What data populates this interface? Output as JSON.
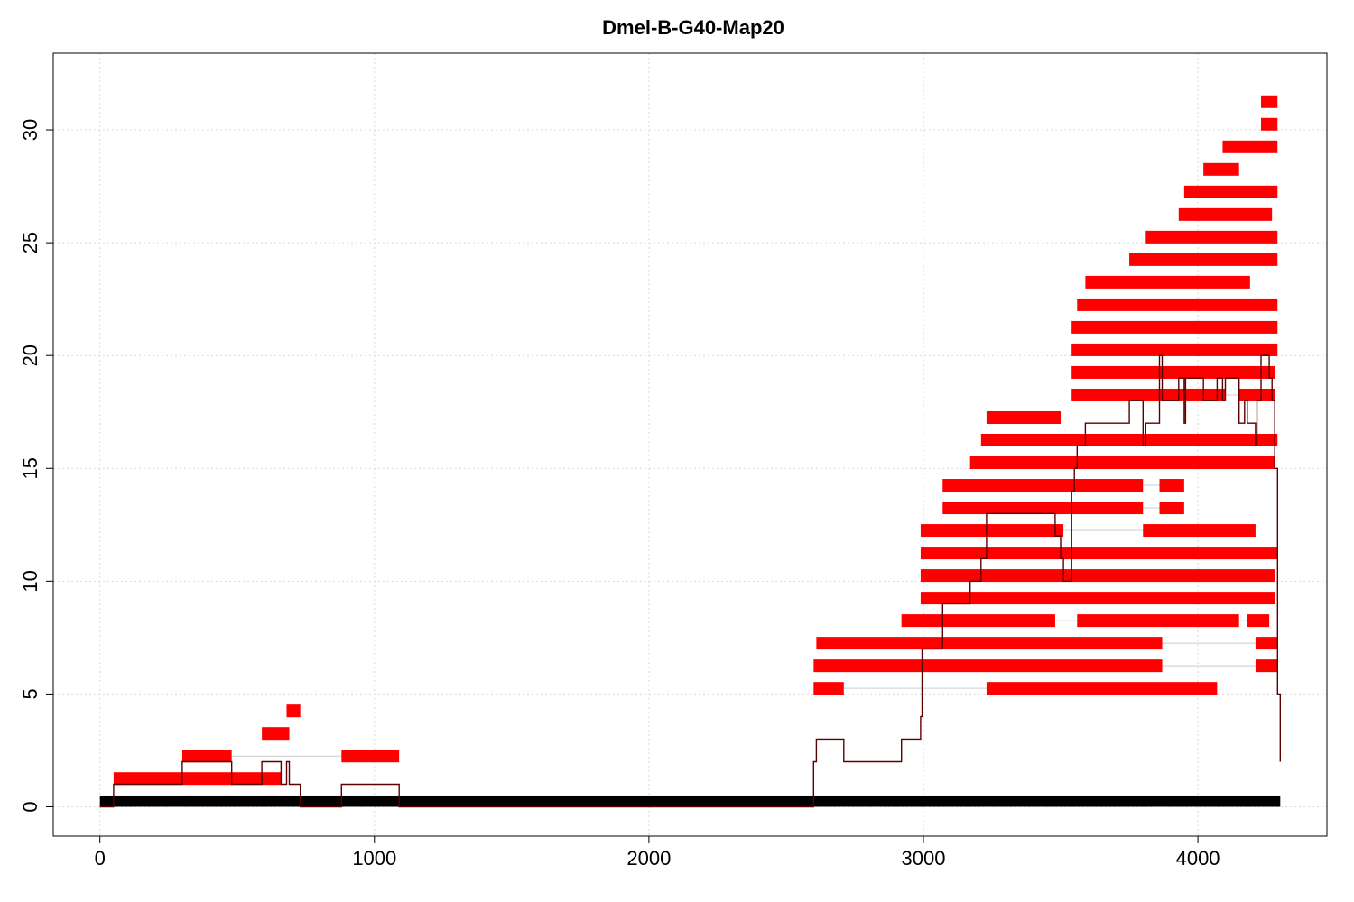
{
  "chart_data": {
    "type": "bar",
    "title": "Dmel-B-G40-Map20",
    "xlabel": "",
    "ylabel": "",
    "xlim": [
      -170,
      4470
    ],
    "ylim": [
      -1.3,
      33.4
    ],
    "x_ticks": [
      0,
      1000,
      2000,
      3000,
      4000
    ],
    "x_tick_labels": [
      "0",
      "1000",
      "2000",
      "3000",
      "4000"
    ],
    "y_ticks": [
      0,
      5,
      10,
      15,
      20,
      25,
      30
    ],
    "y_tick_labels": [
      "0",
      "5",
      "10",
      "15",
      "20",
      "25",
      "30"
    ],
    "grid": true,
    "colors": {
      "alignment": "#ff0000",
      "reference": "#000000",
      "coverage": "#5c0000",
      "connector": "#cccccc"
    },
    "reference_bar": {
      "start": 0,
      "end": 4300,
      "y": 0.25,
      "height": 0.5
    },
    "series": [
      {
        "y": 1.25,
        "segments": [
          [
            50,
            660
          ]
        ]
      },
      {
        "y": 2.25,
        "segments": [
          [
            300,
            480
          ],
          [
            880,
            1090
          ]
        ]
      },
      {
        "y": 3.25,
        "segments": [
          [
            590,
            690
          ]
        ]
      },
      {
        "y": 4.25,
        "segments": [
          [
            680,
            730
          ]
        ]
      },
      {
        "y": 5.25,
        "segments": [
          [
            2600,
            2710
          ],
          [
            3230,
            4070
          ]
        ]
      },
      {
        "y": 6.25,
        "segments": [
          [
            2600,
            3870
          ],
          [
            4210,
            4290
          ]
        ]
      },
      {
        "y": 7.25,
        "segments": [
          [
            2610,
            3870
          ],
          [
            4210,
            4290
          ]
        ]
      },
      {
        "y": 8.25,
        "segments": [
          [
            2920,
            3480
          ],
          [
            3560,
            4150
          ],
          [
            4180,
            4260
          ]
        ]
      },
      {
        "y": 9.25,
        "segments": [
          [
            2990,
            4280
          ]
        ]
      },
      {
        "y": 10.25,
        "segments": [
          [
            2990,
            4280
          ]
        ]
      },
      {
        "y": 11.25,
        "segments": [
          [
            2990,
            4290
          ]
        ]
      },
      {
        "y": 12.25,
        "segments": [
          [
            2990,
            3510
          ],
          [
            3800,
            4210
          ]
        ]
      },
      {
        "y": 13.25,
        "segments": [
          [
            3070,
            3800
          ],
          [
            3860,
            3950
          ]
        ]
      },
      {
        "y": 14.25,
        "segments": [
          [
            3070,
            3800
          ],
          [
            3860,
            3950
          ]
        ]
      },
      {
        "y": 15.25,
        "segments": [
          [
            3170,
            4280
          ]
        ]
      },
      {
        "y": 16.25,
        "segments": [
          [
            3210,
            4290
          ]
        ]
      },
      {
        "y": 17.25,
        "segments": [
          [
            3230,
            3500
          ]
        ]
      },
      {
        "y": 18.25,
        "segments": [
          [
            3540,
            4100
          ],
          [
            4150,
            4280
          ]
        ]
      },
      {
        "y": 19.25,
        "segments": [
          [
            3540,
            4280
          ]
        ]
      },
      {
        "y": 20.25,
        "segments": [
          [
            3540,
            4290
          ]
        ]
      },
      {
        "y": 21.25,
        "segments": [
          [
            3540,
            4290
          ]
        ]
      },
      {
        "y": 22.25,
        "segments": [
          [
            3560,
            4290
          ]
        ]
      },
      {
        "y": 23.25,
        "segments": [
          [
            3590,
            4190
          ]
        ]
      },
      {
        "y": 24.25,
        "segments": [
          [
            3750,
            4290
          ]
        ]
      },
      {
        "y": 25.25,
        "segments": [
          [
            3810,
            4290
          ]
        ]
      },
      {
        "y": 26.25,
        "segments": [
          [
            3930,
            4270
          ]
        ]
      },
      {
        "y": 27.25,
        "segments": [
          [
            3950,
            4290
          ]
        ]
      },
      {
        "y": 28.25,
        "segments": [
          [
            4020,
            4150
          ]
        ]
      },
      {
        "y": 29.25,
        "segments": [
          [
            4090,
            4290
          ]
        ]
      },
      {
        "y": 30.25,
        "segments": [
          [
            4230,
            4290
          ]
        ]
      },
      {
        "y": 31.25,
        "segments": [
          [
            4230,
            4290
          ]
        ]
      }
    ],
    "coverage": [
      [
        0,
        0
      ],
      [
        50,
        0
      ],
      [
        50,
        1
      ],
      [
        300,
        1
      ],
      [
        300,
        2
      ],
      [
        480,
        2
      ],
      [
        480,
        1
      ],
      [
        590,
        1
      ],
      [
        590,
        2
      ],
      [
        660,
        2
      ],
      [
        660,
        1
      ],
      [
        680,
        1
      ],
      [
        680,
        2
      ],
      [
        690,
        2
      ],
      [
        690,
        1
      ],
      [
        730,
        1
      ],
      [
        730,
        0
      ],
      [
        880,
        0
      ],
      [
        880,
        1
      ],
      [
        1090,
        1
      ],
      [
        1090,
        0
      ],
      [
        2600,
        0
      ],
      [
        2600,
        2
      ],
      [
        2610,
        2
      ],
      [
        2610,
        3
      ],
      [
        2710,
        3
      ],
      [
        2710,
        2
      ],
      [
        2920,
        2
      ],
      [
        2920,
        3
      ],
      [
        2990,
        3
      ],
      [
        2990,
        4
      ],
      [
        2995,
        4
      ],
      [
        2995,
        7
      ],
      [
        3070,
        7
      ],
      [
        3070,
        9
      ],
      [
        3170,
        9
      ],
      [
        3170,
        10
      ],
      [
        3210,
        10
      ],
      [
        3210,
        11
      ],
      [
        3230,
        11
      ],
      [
        3230,
        13
      ],
      [
        3480,
        13
      ],
      [
        3480,
        12
      ],
      [
        3500,
        12
      ],
      [
        3500,
        11
      ],
      [
        3510,
        11
      ],
      [
        3510,
        10
      ],
      [
        3540,
        10
      ],
      [
        3540,
        14
      ],
      [
        3550,
        14
      ],
      [
        3550,
        15
      ],
      [
        3560,
        15
      ],
      [
        3560,
        16
      ],
      [
        3590,
        16
      ],
      [
        3590,
        17
      ],
      [
        3750,
        17
      ],
      [
        3750,
        18
      ],
      [
        3800,
        18
      ],
      [
        3800,
        16
      ],
      [
        3810,
        16
      ],
      [
        3810,
        17
      ],
      [
        3860,
        17
      ],
      [
        3860,
        20
      ],
      [
        3870,
        20
      ],
      [
        3870,
        18
      ],
      [
        3930,
        18
      ],
      [
        3930,
        19
      ],
      [
        3950,
        19
      ],
      [
        3950,
        17
      ],
      [
        3955,
        17
      ],
      [
        3955,
        19
      ],
      [
        4020,
        19
      ],
      [
        4020,
        18
      ],
      [
        4070,
        18
      ],
      [
        4070,
        19
      ],
      [
        4090,
        19
      ],
      [
        4090,
        18
      ],
      [
        4100,
        18
      ],
      [
        4100,
        19
      ],
      [
        4150,
        19
      ],
      [
        4150,
        17
      ],
      [
        4170,
        17
      ],
      [
        4170,
        18
      ],
      [
        4180,
        18
      ],
      [
        4180,
        17
      ],
      [
        4210,
        17
      ],
      [
        4210,
        16
      ],
      [
        4215,
        16
      ],
      [
        4215,
        18
      ],
      [
        4230,
        18
      ],
      [
        4230,
        20
      ],
      [
        4260,
        20
      ],
      [
        4260,
        19
      ],
      [
        4270,
        19
      ],
      [
        4270,
        18
      ],
      [
        4280,
        18
      ],
      [
        4280,
        15
      ],
      [
        4290,
        15
      ],
      [
        4290,
        5
      ],
      [
        4300,
        5
      ],
      [
        4300,
        2
      ]
    ]
  }
}
